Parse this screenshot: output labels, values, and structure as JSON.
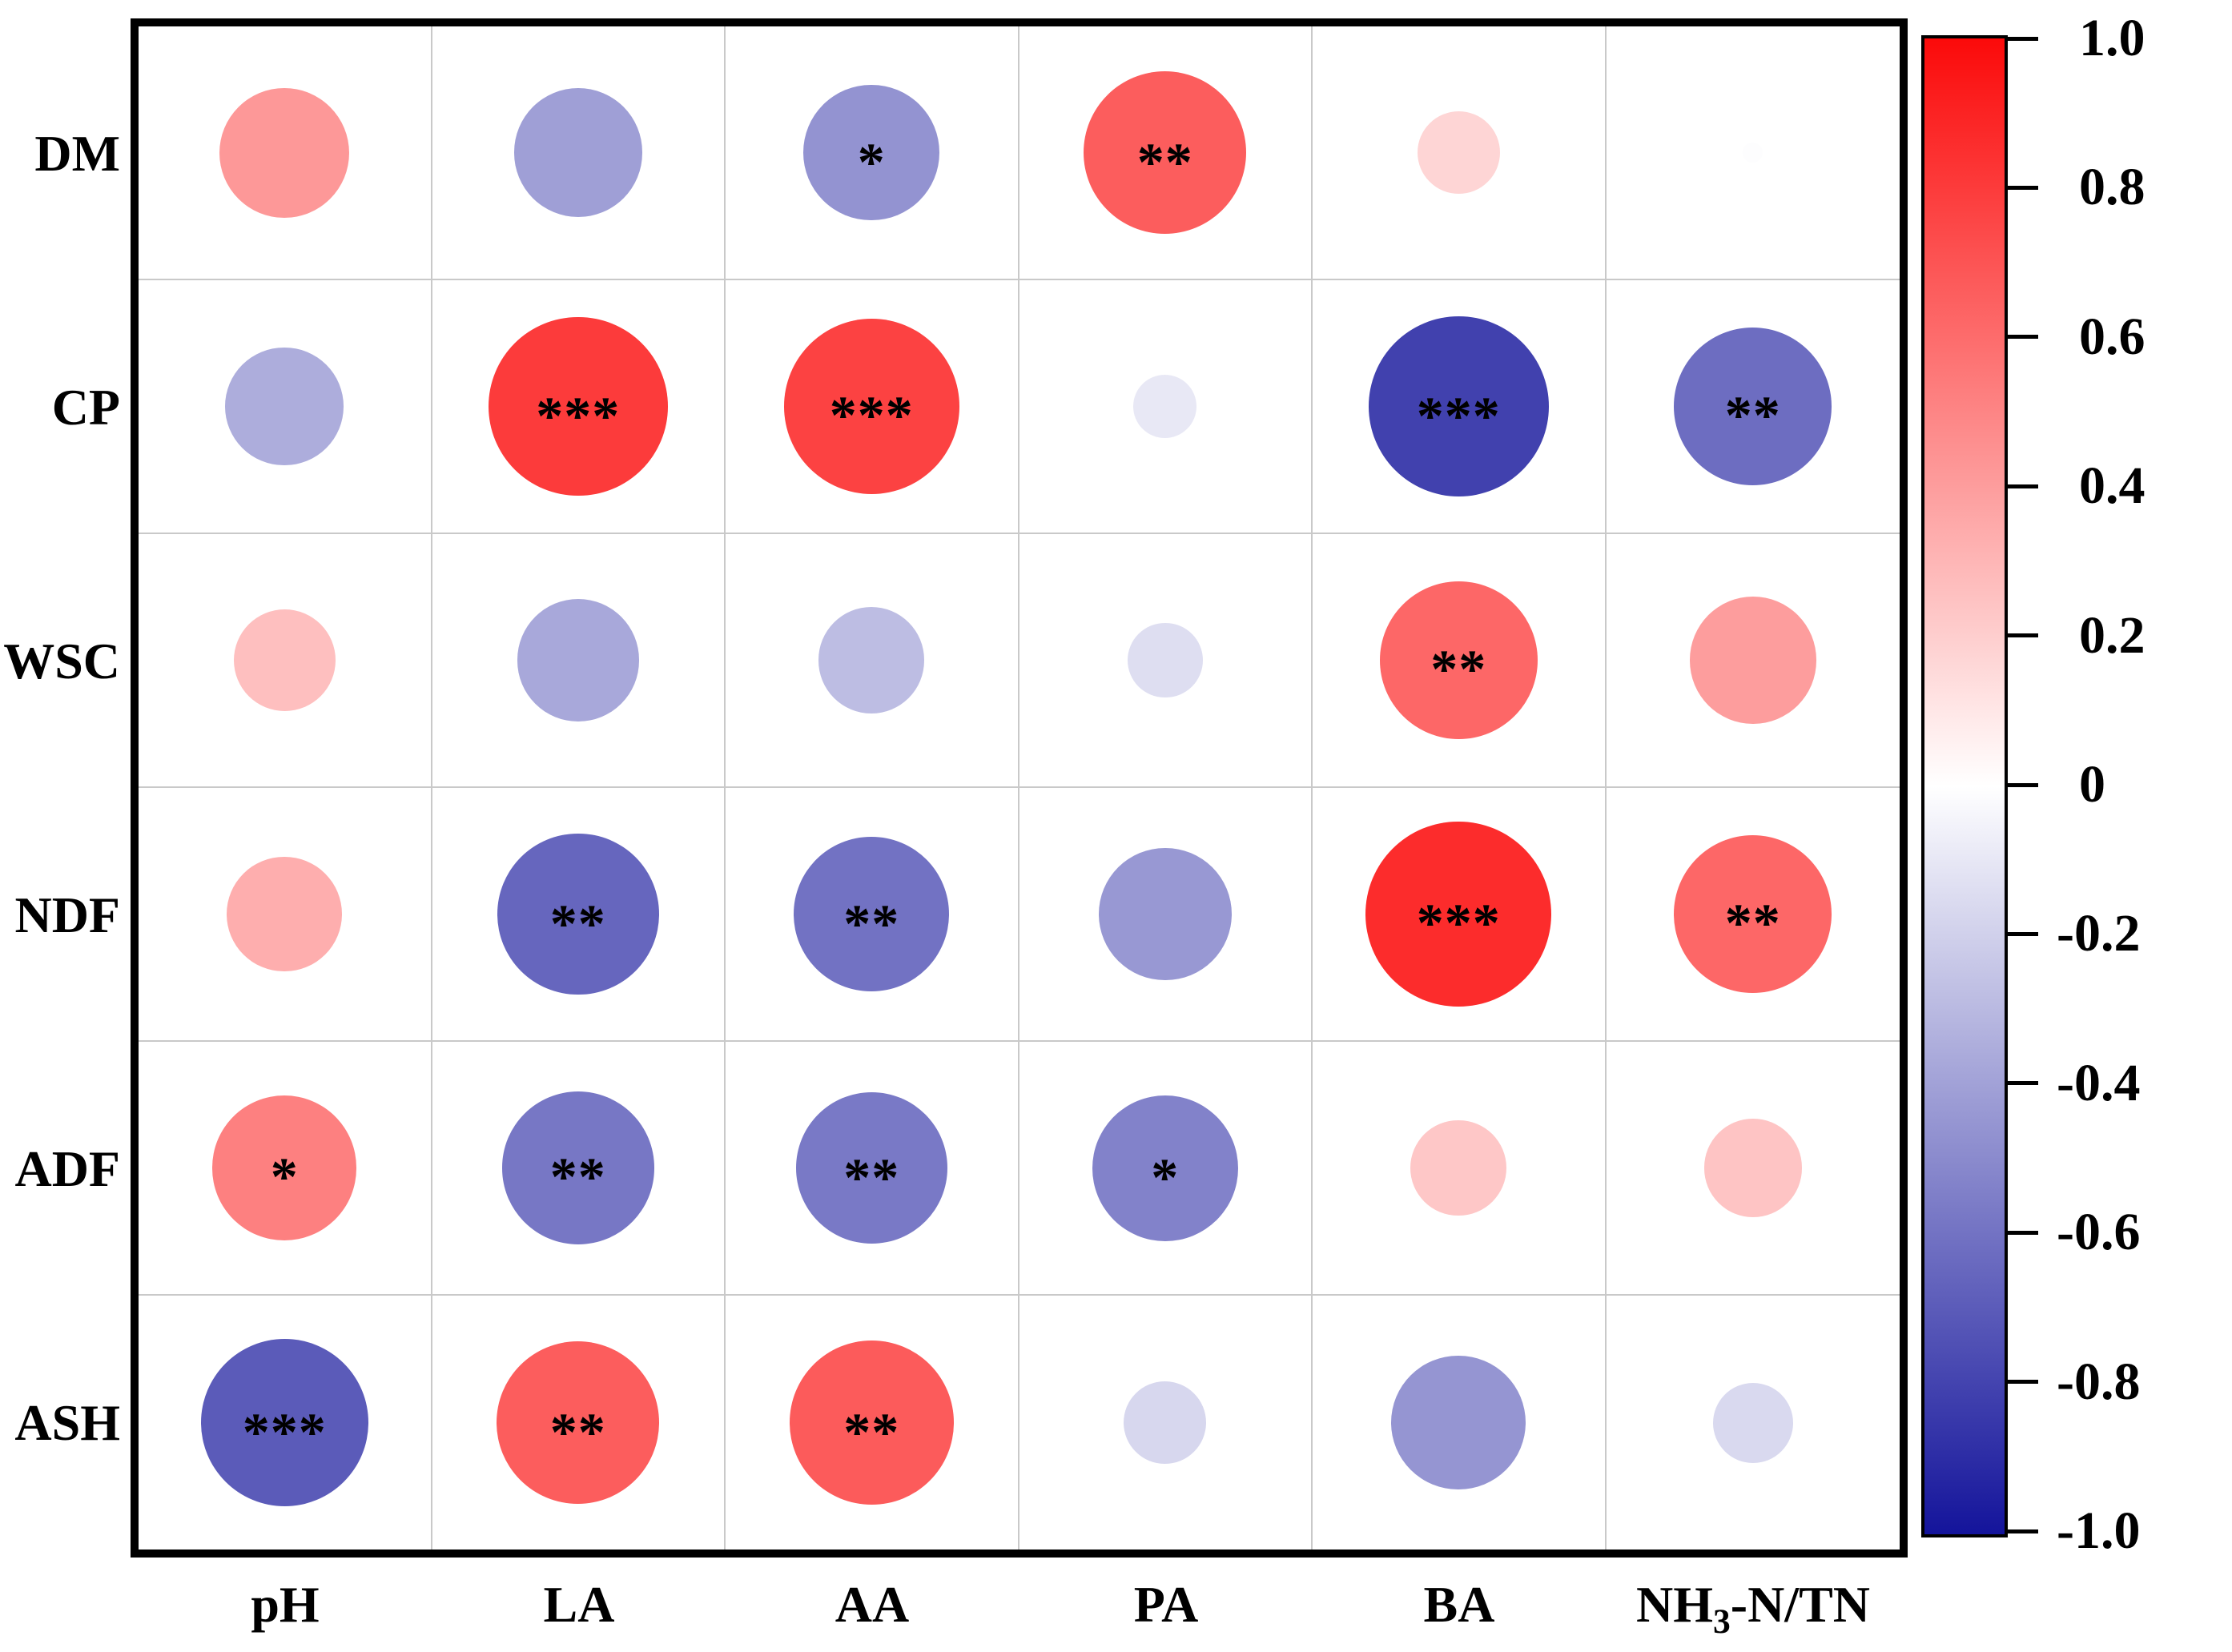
{
  "chart_data": {
    "type": "bubble-correlation-matrix",
    "title": "",
    "rows": [
      "DM",
      "CP",
      "WSC",
      "NDF",
      "ADF",
      "ASH"
    ],
    "columns": [
      "pH",
      "LA",
      "AA",
      "PA",
      "BA",
      "NH3-N/TN"
    ],
    "column_display": [
      {
        "base": "pH",
        "sub": "",
        "rest": ""
      },
      {
        "base": "LA",
        "sub": "",
        "rest": ""
      },
      {
        "base": "AA",
        "sub": "",
        "rest": ""
      },
      {
        "base": "PA",
        "sub": "",
        "rest": ""
      },
      {
        "base": "BA",
        "sub": "",
        "rest": ""
      },
      {
        "base": "NH",
        "sub": "3",
        "rest": "-N/TN"
      }
    ],
    "matrix": [
      [
        {
          "r": 0.42,
          "sig": ""
        },
        {
          "r": -0.41,
          "sig": ""
        },
        {
          "r": -0.46,
          "sig": "*"
        },
        {
          "r": 0.66,
          "sig": "**"
        },
        {
          "r": 0.17,
          "sig": ""
        },
        {
          "r": -0.01,
          "sig": ""
        }
      ],
      [
        {
          "r": -0.35,
          "sig": ""
        },
        {
          "r": 0.8,
          "sig": "***"
        },
        {
          "r": 0.77,
          "sig": "***"
        },
        {
          "r": -0.1,
          "sig": ""
        },
        {
          "r": -0.81,
          "sig": "***"
        },
        {
          "r": -0.62,
          "sig": "**"
        }
      ],
      [
        {
          "r": 0.26,
          "sig": ""
        },
        {
          "r": -0.37,
          "sig": ""
        },
        {
          "r": -0.28,
          "sig": ""
        },
        {
          "r": -0.14,
          "sig": ""
        },
        {
          "r": 0.62,
          "sig": "**"
        },
        {
          "r": 0.4,
          "sig": ""
        }
      ],
      [
        {
          "r": 0.33,
          "sig": ""
        },
        {
          "r": -0.65,
          "sig": "**"
        },
        {
          "r": -0.6,
          "sig": "**"
        },
        {
          "r": -0.44,
          "sig": ""
        },
        {
          "r": 0.86,
          "sig": "***"
        },
        {
          "r": 0.62,
          "sig": "**"
        }
      ],
      [
        {
          "r": 0.52,
          "sig": "*"
        },
        {
          "r": -0.58,
          "sig": "**"
        },
        {
          "r": -0.57,
          "sig": "**"
        },
        {
          "r": -0.53,
          "sig": "*"
        },
        {
          "r": 0.23,
          "sig": ""
        },
        {
          "r": 0.24,
          "sig": ""
        }
      ],
      [
        {
          "r": -0.7,
          "sig": "***"
        },
        {
          "r": 0.66,
          "sig": "**"
        },
        {
          "r": 0.67,
          "sig": "**"
        },
        {
          "r": -0.17,
          "sig": ""
        },
        {
          "r": -0.45,
          "sig": ""
        },
        {
          "r": -0.16,
          "sig": ""
        }
      ]
    ],
    "colorbar": {
      "max": 1.0,
      "min": -1.0,
      "ticks": [
        "1.0",
        "0.8",
        "0.6",
        "0.4",
        "0.2",
        "0",
        "-0.2",
        "-0.4",
        "-0.6",
        "-0.8",
        "-1.0"
      ],
      "positive_color": "#FB0A0A",
      "zero_color": "#FFFFFF",
      "negative_color": "#14149B",
      "position": "right"
    },
    "grid": true,
    "xlabel": "",
    "ylabel": ""
  }
}
